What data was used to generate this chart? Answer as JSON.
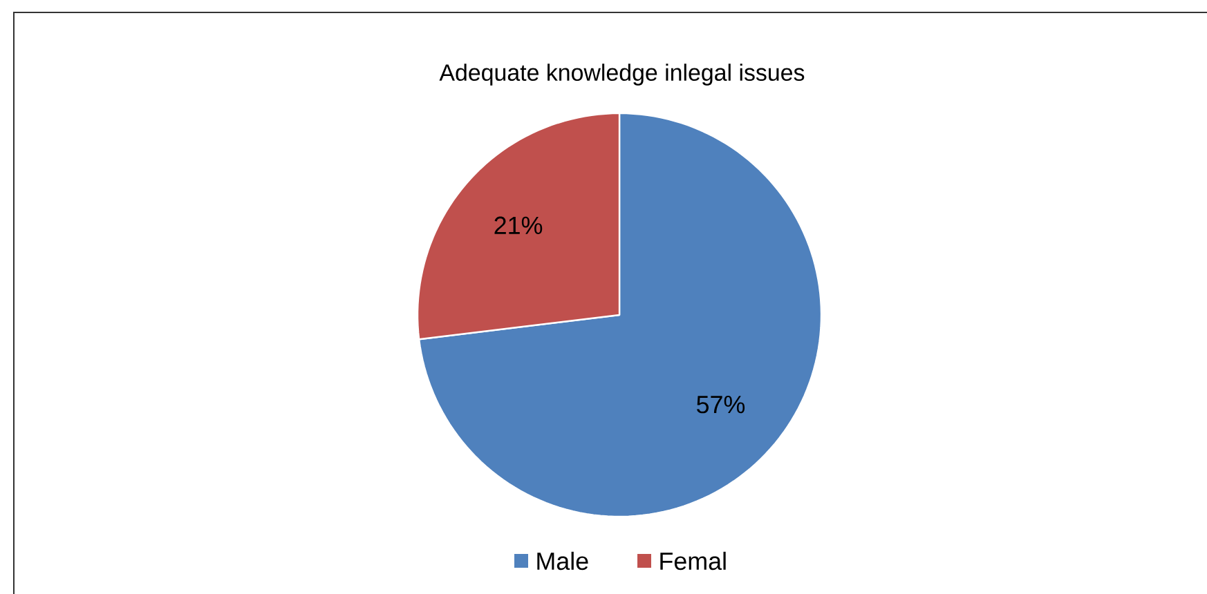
{
  "chart_data": {
    "type": "pie",
    "title": "Adequate knowledge inlegal issues",
    "categories": [
      "Male",
      "Femal"
    ],
    "values": [
      57,
      21
    ],
    "colors": [
      "#4f81bd",
      "#c0504d"
    ],
    "value_labels": [
      "57%",
      "21%"
    ],
    "legend": "bottom"
  }
}
